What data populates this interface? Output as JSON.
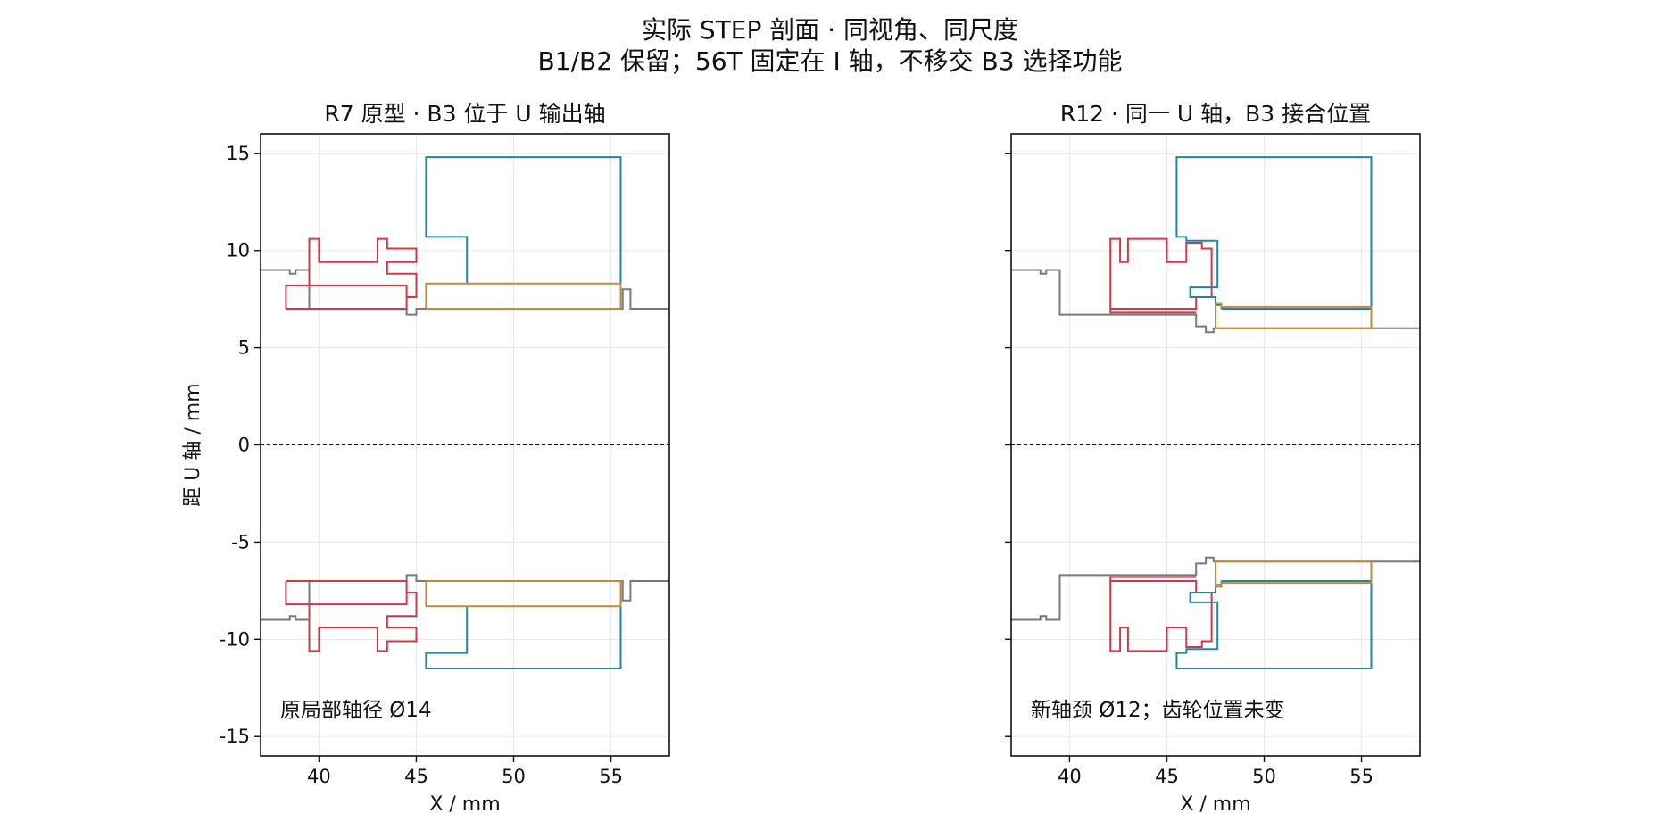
{
  "figure": {
    "title_line1": "实际 STEP 剖面 · 同视角、同尺度",
    "title_line2": "B1/B2 保留；56T 固定在 I 轴，不移交 B3 选择功能"
  },
  "colors": {
    "shaft": "#6f7b8c",
    "gear_red": "#d03a48",
    "gear_teal": "#1f86a8",
    "sleeve_gold": "#c48a35"
  },
  "chart_data": [
    {
      "type": "line",
      "title": "R7 原型 · B3 位于 U 输出轴",
      "xlabel": "X / mm",
      "ylabel": "距 U 轴 / mm",
      "xlim": [
        37,
        58
      ],
      "ylim": [
        -16,
        16
      ],
      "xticks": [
        40,
        45,
        50,
        55
      ],
      "yticks": [
        15,
        10,
        5,
        0,
        -5,
        -10,
        -15
      ],
      "grid": true,
      "zero_line": true,
      "annotation": "原局部轴径 Ø14",
      "series": [
        {
          "color": "shaft",
          "points": [
            [
              37,
              9
            ],
            [
              38.5,
              9
            ],
            [
              38.5,
              8.8
            ],
            [
              38.8,
              8.8
            ],
            [
              38.8,
              9
            ],
            [
              39.5,
              9
            ],
            [
              39.5,
              7
            ],
            [
              44.5,
              7
            ],
            [
              44.5,
              6.7
            ],
            [
              45,
              6.7
            ],
            [
              45,
              7
            ],
            [
              55.6,
              7
            ],
            [
              55.6,
              8
            ],
            [
              56,
              8
            ],
            [
              56,
              7
            ],
            [
              58,
              7
            ]
          ]
        },
        {
          "color": "shaft",
          "points": [
            [
              37,
              -9
            ],
            [
              38.5,
              -9
            ],
            [
              38.5,
              -8.8
            ],
            [
              38.8,
              -8.8
            ],
            [
              38.8,
              -9
            ],
            [
              39.5,
              -9
            ],
            [
              39.5,
              -7
            ],
            [
              44.5,
              -7
            ],
            [
              44.5,
              -6.7
            ],
            [
              45,
              -6.7
            ],
            [
              45,
              -7
            ],
            [
              55.6,
              -7
            ],
            [
              55.6,
              -8
            ],
            [
              56,
              -8
            ],
            [
              56,
              -7
            ],
            [
              58,
              -7
            ]
          ]
        },
        {
          "color": "gear_red",
          "points": [
            [
              38.3,
              7
            ],
            [
              44.5,
              7
            ],
            [
              44.5,
              7.6
            ],
            [
              45,
              7.6
            ],
            [
              45,
              8.8
            ],
            [
              43.5,
              8.8
            ],
            [
              43.5,
              9.4
            ],
            [
              45,
              9.4
            ],
            [
              45,
              10.1
            ],
            [
              43.5,
              10.1
            ],
            [
              43.5,
              10.6
            ],
            [
              43,
              10.6
            ],
            [
              43,
              9.4
            ],
            [
              40,
              9.4
            ],
            [
              40,
              10.6
            ],
            [
              39.5,
              10.6
            ],
            [
              39.5,
              8.2
            ],
            [
              38.3,
              8.2
            ],
            [
              38.3,
              7
            ]
          ]
        },
        {
          "color": "gear_red",
          "points": [
            [
              39.5,
              8.2
            ],
            [
              44.5,
              8.2
            ],
            [
              44.5,
              7.6
            ]
          ]
        },
        {
          "color": "gear_red",
          "points": [
            [
              38.3,
              -7
            ],
            [
              44.5,
              -7
            ],
            [
              44.5,
              -7.6
            ],
            [
              45,
              -7.6
            ],
            [
              45,
              -8.8
            ],
            [
              43.5,
              -8.8
            ],
            [
              43.5,
              -9.4
            ],
            [
              45,
              -9.4
            ],
            [
              45,
              -10.1
            ],
            [
              43.5,
              -10.1
            ],
            [
              43.5,
              -10.6
            ],
            [
              43,
              -10.6
            ],
            [
              43,
              -9.4
            ],
            [
              40,
              -9.4
            ],
            [
              40,
              -10.6
            ],
            [
              39.5,
              -10.6
            ],
            [
              39.5,
              -8.2
            ],
            [
              38.3,
              -8.2
            ],
            [
              38.3,
              -7
            ]
          ]
        },
        {
          "color": "gear_red",
          "points": [
            [
              39.5,
              -8.2
            ],
            [
              44.5,
              -8.2
            ],
            [
              44.5,
              -7.6
            ]
          ]
        },
        {
          "color": "gear_teal",
          "points": [
            [
              47.6,
              8.3
            ],
            [
              47.6,
              10.7
            ],
            [
              45.5,
              10.7
            ],
            [
              45.5,
              14.8
            ],
            [
              55.5,
              14.8
            ],
            [
              55.5,
              8.3
            ]
          ]
        },
        {
          "color": "gear_teal",
          "points": [
            [
              47.6,
              -8.3
            ],
            [
              47.6,
              -10.7
            ],
            [
              45.5,
              -10.7
            ],
            [
              45.5,
              -11.5
            ],
            [
              55.5,
              -11.5
            ],
            [
              55.5,
              -8.3
            ]
          ]
        },
        {
          "color": "sleeve_gold",
          "points": [
            [
              45.5,
              7
            ],
            [
              55.5,
              7
            ],
            [
              55.5,
              8.3
            ],
            [
              45.5,
              8.3
            ],
            [
              45.5,
              7
            ]
          ]
        },
        {
          "color": "sleeve_gold",
          "points": [
            [
              45.5,
              -7
            ],
            [
              55.5,
              -7
            ],
            [
              55.5,
              -8.3
            ],
            [
              45.5,
              -8.3
            ],
            [
              45.5,
              -7
            ]
          ]
        }
      ]
    },
    {
      "type": "line",
      "title": "R12 · 同一 U 轴，B3 接合位置",
      "xlabel": "X / mm",
      "ylabel": "",
      "xlim": [
        37,
        58
      ],
      "ylim": [
        -16,
        16
      ],
      "xticks": [
        40,
        45,
        50,
        55
      ],
      "yticks": [
        15,
        10,
        5,
        0,
        -5,
        -10,
        -15
      ],
      "grid": true,
      "zero_line": true,
      "annotation": "新轴颈 Ø12；齿轮位置未变",
      "series": [
        {
          "color": "shaft",
          "points": [
            [
              37,
              9
            ],
            [
              38.5,
              9
            ],
            [
              38.5,
              8.8
            ],
            [
              38.8,
              8.8
            ],
            [
              38.8,
              9
            ],
            [
              39.5,
              9
            ],
            [
              39.5,
              6.7
            ],
            [
              46.5,
              6.7
            ],
            [
              46.5,
              6.1
            ],
            [
              47,
              6.1
            ],
            [
              47,
              5.8
            ],
            [
              47.4,
              5.8
            ],
            [
              47.4,
              6
            ],
            [
              55.6,
              6
            ],
            [
              58,
              6
            ]
          ]
        },
        {
          "color": "shaft",
          "points": [
            [
              37,
              -9
            ],
            [
              38.5,
              -9
            ],
            [
              38.5,
              -8.8
            ],
            [
              38.8,
              -8.8
            ],
            [
              38.8,
              -9
            ],
            [
              39.5,
              -9
            ],
            [
              39.5,
              -6.7
            ],
            [
              46.5,
              -6.7
            ],
            [
              46.5,
              -6.1
            ],
            [
              47,
              -6.1
            ],
            [
              47,
              -5.8
            ],
            [
              47.4,
              -5.8
            ],
            [
              47.4,
              -6
            ],
            [
              55.6,
              -6
            ],
            [
              58,
              -6
            ]
          ]
        },
        {
          "color": "gear_red",
          "points": [
            [
              42.1,
              6.8
            ],
            [
              42.1,
              7
            ],
            [
              46.5,
              7
            ],
            [
              46.5,
              7.6
            ],
            [
              47.3,
              7.6
            ],
            [
              47.3,
              10.1
            ],
            [
              46.8,
              10.1
            ],
            [
              46.8,
              10.4
            ],
            [
              46,
              10.4
            ],
            [
              46,
              9.4
            ],
            [
              45,
              9.4
            ],
            [
              45,
              10.6
            ],
            [
              43,
              10.6
            ],
            [
              43,
              9.4
            ],
            [
              42.6,
              9.4
            ],
            [
              42.6,
              10.6
            ],
            [
              42.1,
              10.6
            ],
            [
              42.1,
              6.8
            ],
            [
              46.5,
              6.8
            ]
          ]
        },
        {
          "color": "gear_red",
          "points": [
            [
              42.1,
              -6.8
            ],
            [
              42.1,
              -7
            ],
            [
              46.5,
              -7
            ],
            [
              46.5,
              -7.6
            ],
            [
              47.3,
              -7.6
            ],
            [
              47.3,
              -10.1
            ],
            [
              46.8,
              -10.1
            ],
            [
              46.8,
              -10.4
            ],
            [
              46,
              -10.4
            ],
            [
              46,
              -9.4
            ],
            [
              45,
              -9.4
            ],
            [
              45,
              -10.6
            ],
            [
              43,
              -10.6
            ],
            [
              43,
              -9.4
            ],
            [
              42.6,
              -9.4
            ],
            [
              42.6,
              -10.6
            ],
            [
              42.1,
              -10.6
            ],
            [
              42.1,
              -6.8
            ],
            [
              46.5,
              -6.8
            ]
          ]
        },
        {
          "color": "gear_teal",
          "points": [
            [
              47.8,
              7
            ],
            [
              55.5,
              7
            ],
            [
              55.5,
              14.8
            ],
            [
              45.5,
              14.8
            ],
            [
              45.5,
              10.7
            ],
            [
              46,
              10.7
            ],
            [
              46,
              10.5
            ],
            [
              47.6,
              10.5
            ],
            [
              47.6,
              8.1
            ],
            [
              46.2,
              8.1
            ],
            [
              46.2,
              7.6
            ],
            [
              47.5,
              7.6
            ],
            [
              47.5,
              7.2
            ],
            [
              47.8,
              7.2
            ],
            [
              47.8,
              7
            ]
          ]
        },
        {
          "color": "gear_teal",
          "points": [
            [
              47.8,
              -7
            ],
            [
              55.5,
              -7
            ],
            [
              55.5,
              -11.5
            ],
            [
              45.5,
              -11.5
            ],
            [
              45.5,
              -10.7
            ],
            [
              46,
              -10.7
            ],
            [
              46,
              -10.5
            ],
            [
              47.6,
              -10.5
            ],
            [
              47.6,
              -8.1
            ],
            [
              46.2,
              -8.1
            ],
            [
              46.2,
              -7.6
            ],
            [
              47.5,
              -7.6
            ],
            [
              47.5,
              -7.2
            ],
            [
              47.8,
              -7.2
            ],
            [
              47.8,
              -7
            ]
          ]
        },
        {
          "color": "sleeve_gold",
          "points": [
            [
              47.5,
              6
            ],
            [
              55.5,
              6
            ],
            [
              55.5,
              7.1
            ],
            [
              47.8,
              7.1
            ],
            [
              47.8,
              7.3
            ],
            [
              47.5,
              7.3
            ],
            [
              47.5,
              6
            ]
          ]
        },
        {
          "color": "sleeve_gold",
          "points": [
            [
              47.5,
              -6
            ],
            [
              55.5,
              -6
            ],
            [
              55.5,
              -7.1
            ],
            [
              47.8,
              -7.1
            ],
            [
              47.8,
              -7.3
            ],
            [
              47.5,
              -7.3
            ],
            [
              47.5,
              -6
            ]
          ]
        }
      ]
    }
  ]
}
